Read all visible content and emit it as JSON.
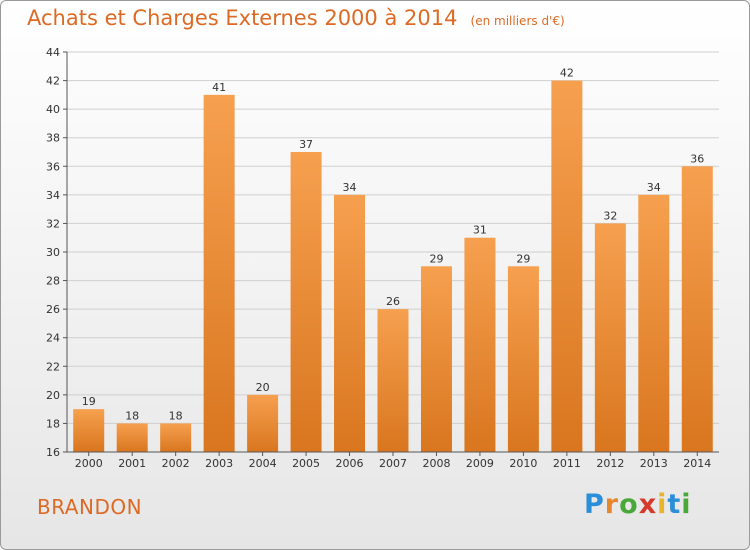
{
  "chart_data": {
    "type": "bar",
    "title": "Achats et Charges Externes 2000 à 2014",
    "unit": "(en milliers d'€)",
    "categories": [
      "2000",
      "2001",
      "2002",
      "2003",
      "2004",
      "2005",
      "2006",
      "2007",
      "2008",
      "2009",
      "2010",
      "2011",
      "2012",
      "2013",
      "2014"
    ],
    "values": [
      19,
      18,
      18,
      41,
      20,
      37,
      34,
      26,
      29,
      31,
      29,
      42,
      32,
      34,
      36
    ],
    "ylim": [
      16,
      44
    ],
    "yticks": [
      16,
      18,
      20,
      22,
      24,
      26,
      28,
      30,
      32,
      34,
      36,
      38,
      40,
      42,
      44
    ],
    "grid": true,
    "bar_color_light": "#f6a04f",
    "bar_color_dark": "#d9761f"
  },
  "footer": {
    "city": "BRANDON",
    "logo": {
      "letters": [
        "P",
        "r",
        "o",
        "x",
        "i",
        "t",
        "i"
      ],
      "colors": [
        "#2a8fd8",
        "#e8862b",
        "#49a83a",
        "#d63a2a",
        "#e8b42b",
        "#2a8fd8",
        "#49a83a"
      ]
    }
  }
}
